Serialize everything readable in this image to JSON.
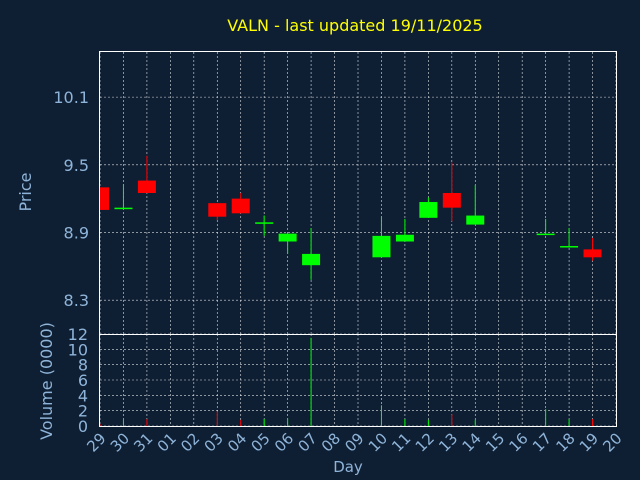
{
  "chart_data": {
    "type": "candlestick",
    "title": "VALN - last updated 19/11/2025",
    "xlabel": "Day",
    "ylabel": "Price",
    "volume_ylabel": "Volume (0000)",
    "ylim": [
      8.0,
      10.5
    ],
    "yticks": [
      8.3,
      8.9,
      9.5,
      10.1
    ],
    "ytick_labels": [
      "8.3",
      "8.9",
      "9.5",
      "10.1"
    ],
    "volume_ylim": [
      0,
      12
    ],
    "volume_yticks": [
      0,
      2,
      4,
      6,
      8,
      10,
      12
    ],
    "grid": true,
    "colors": {
      "up": "#00ff00",
      "down": "#ff0000",
      "background": "#0f1f33",
      "title": "#ffff00",
      "axis_text": "#8fb4d9"
    },
    "x_labels": [
      "29",
      "30",
      "31",
      "01",
      "02",
      "03",
      "04",
      "05",
      "06",
      "07",
      "08",
      "09",
      "10",
      "11",
      "12",
      "13",
      "14",
      "15",
      "16",
      "17",
      "18",
      "19",
      "20"
    ],
    "candles": [
      {
        "day": "29",
        "open": 9.3,
        "close": 9.1,
        "high": 9.3,
        "low": 9.1,
        "volume": 0.3
      },
      {
        "day": "30",
        "open": 9.11,
        "close": 9.12,
        "high": 9.33,
        "low": 9.11,
        "volume": 0.8
      },
      {
        "day": "31",
        "open": 9.36,
        "close": 9.25,
        "high": 9.58,
        "low": 9.25,
        "volume": 0.9
      },
      {
        "day": "03",
        "open": 9.16,
        "close": 9.04,
        "high": 9.16,
        "low": 9.01,
        "volume": 1.9
      },
      {
        "day": "04",
        "open": 9.2,
        "close": 9.07,
        "high": 9.25,
        "low": 9.07,
        "volume": 0.8
      },
      {
        "day": "05",
        "open": 8.98,
        "close": 8.99,
        "high": 9.05,
        "low": 8.87,
        "volume": 0.9
      },
      {
        "day": "06",
        "open": 8.82,
        "close": 8.89,
        "high": 8.89,
        "low": 8.71,
        "volume": 1.0
      },
      {
        "day": "07",
        "open": 8.61,
        "close": 8.71,
        "high": 8.94,
        "low": 8.48,
        "volume": 11.5
      },
      {
        "day": "10",
        "open": 8.68,
        "close": 8.87,
        "high": 9.04,
        "low": 8.68,
        "volume": 2.7
      },
      {
        "day": "11",
        "open": 8.82,
        "close": 8.88,
        "high": 9.02,
        "low": 8.82,
        "volume": 0.9
      },
      {
        "day": "12",
        "open": 9.03,
        "close": 9.17,
        "high": 9.21,
        "low": 9.03,
        "volume": 0.8
      },
      {
        "day": "13",
        "open": 9.25,
        "close": 9.12,
        "high": 9.52,
        "low": 9.0,
        "volume": 1.5
      },
      {
        "day": "14",
        "open": 8.97,
        "close": 9.05,
        "high": 9.32,
        "low": 8.97,
        "volume": 0.8
      },
      {
        "day": "17",
        "open": 8.89,
        "close": 8.89,
        "high": 9.02,
        "low": 8.89,
        "volume": 2.2
      },
      {
        "day": "18",
        "open": 8.78,
        "close": 8.78,
        "high": 8.94,
        "low": 8.78,
        "volume": 0.9
      },
      {
        "day": "19",
        "open": 8.75,
        "close": 8.68,
        "high": 8.85,
        "low": 8.65,
        "volume": 0.9
      }
    ]
  }
}
